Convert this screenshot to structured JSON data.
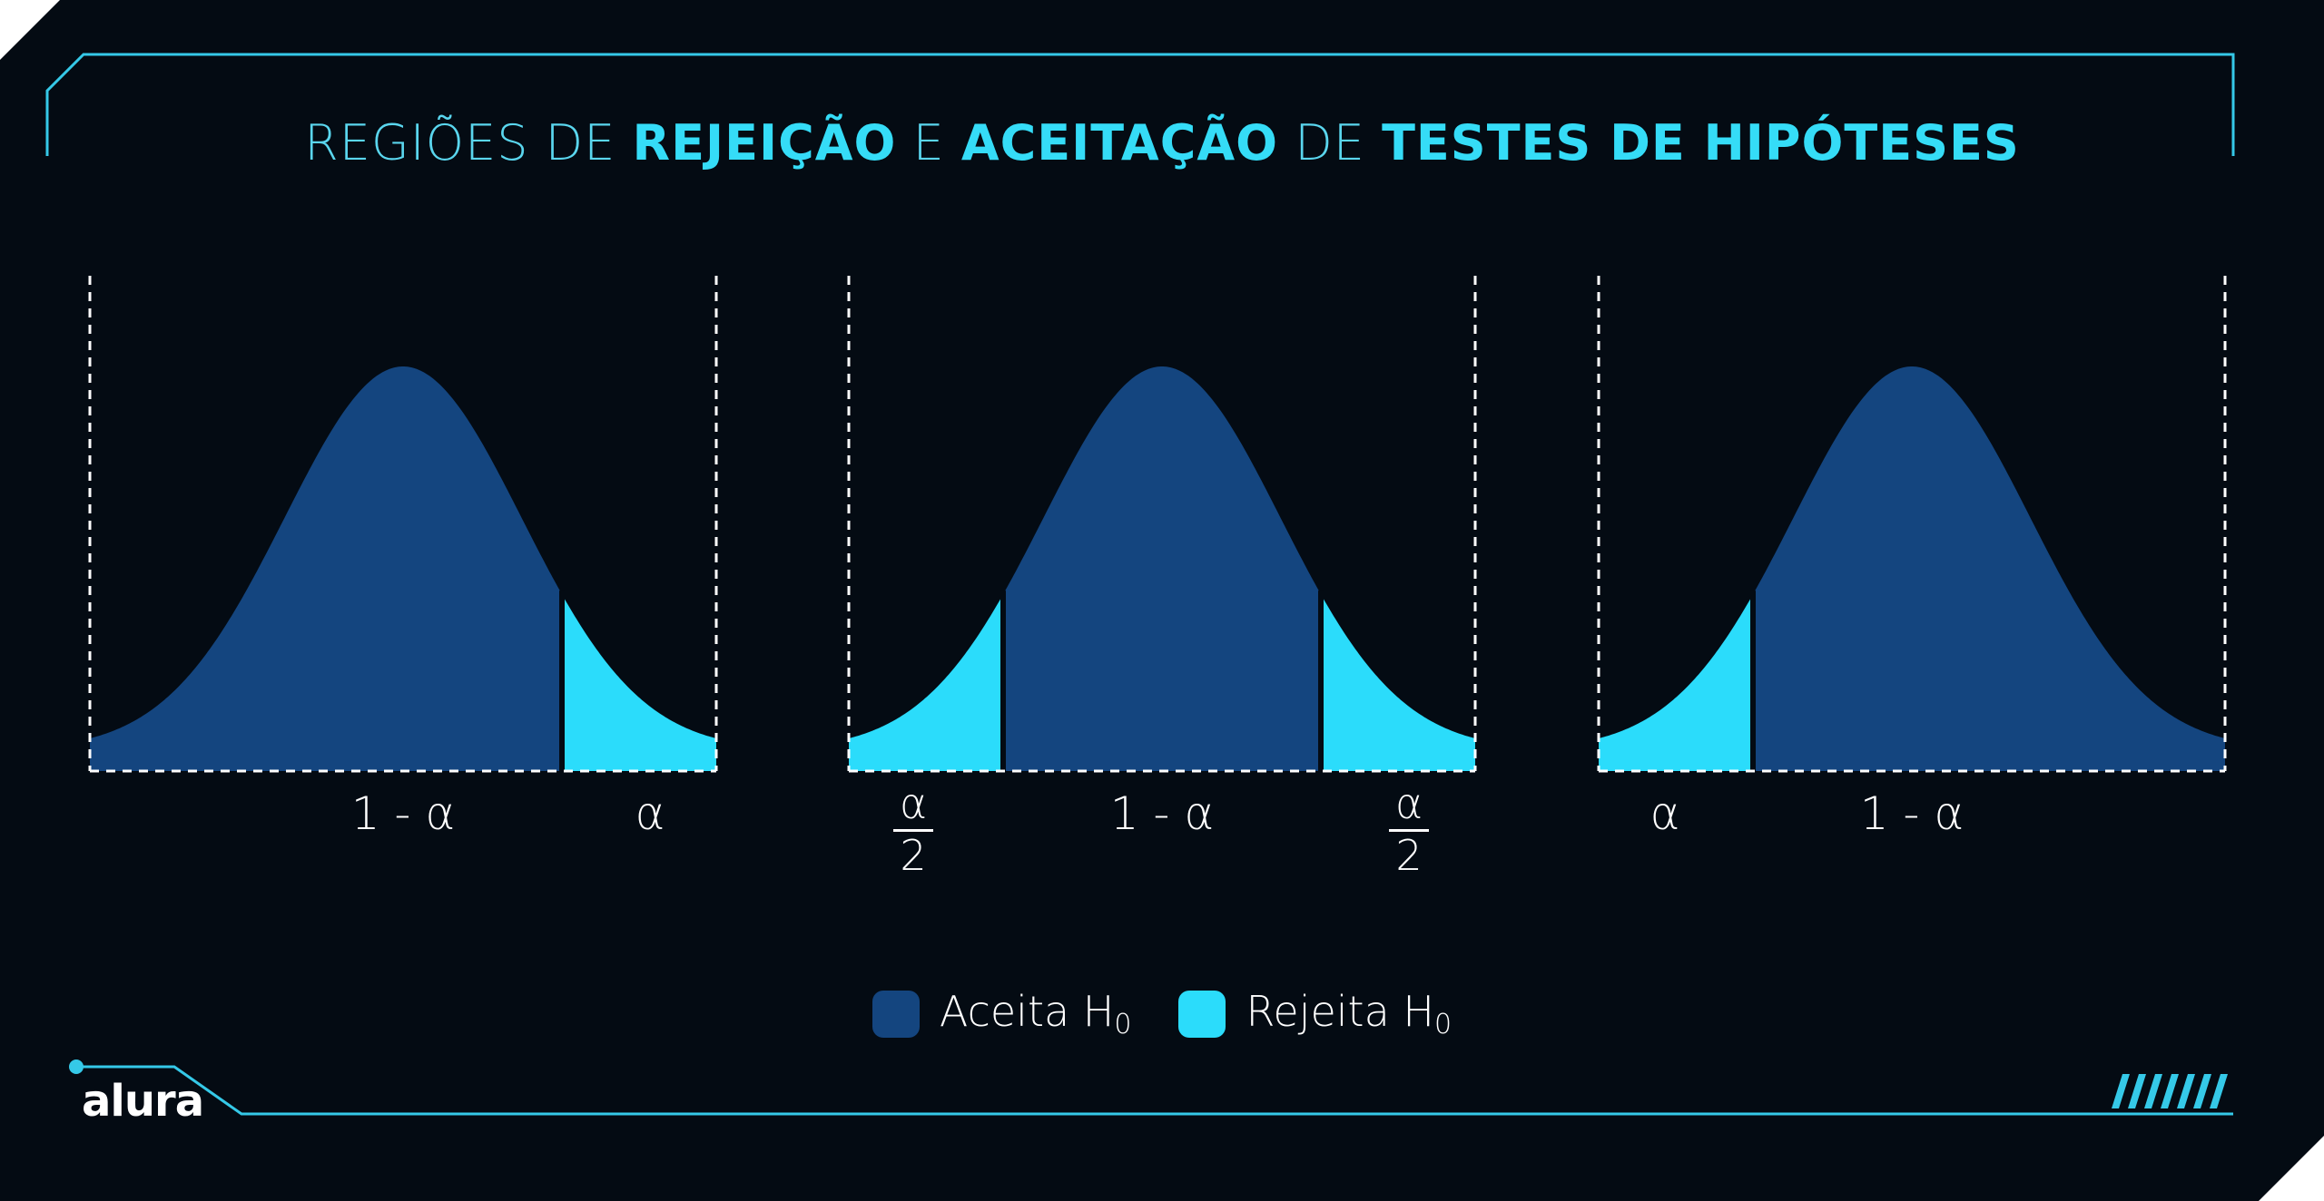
{
  "title": {
    "parts": [
      {
        "text": "REGIÕES DE ",
        "weight": "light"
      },
      {
        "text": "REJEIÇÃO",
        "weight": "bold"
      },
      {
        "text": " E ",
        "weight": "light"
      },
      {
        "text": "ACEITAÇÃO",
        "weight": "bold"
      },
      {
        "text": " DE ",
        "weight": "light"
      },
      {
        "text": "TESTES DE HIPÓTESES",
        "weight": "bold"
      }
    ]
  },
  "colors": {
    "accept": "#14457f",
    "reject": "#2bdcfb",
    "accent": "#35c9e8",
    "background": "#040b13"
  },
  "panels": [
    {
      "type": "right-tailed",
      "labels": {
        "center": "1 - α",
        "right": "α"
      }
    },
    {
      "type": "two-tailed",
      "labels": {
        "left_num": "α",
        "left_den": "2",
        "center": "1 - α",
        "right_num": "α",
        "right_den": "2"
      }
    },
    {
      "type": "left-tailed",
      "labels": {
        "left": "α",
        "center": "1 - α"
      }
    }
  ],
  "legend": {
    "accept_label": "Aceita H",
    "accept_sub": "0",
    "reject_label": "Rejeita H",
    "reject_sub": "0"
  },
  "logo": "alura"
}
